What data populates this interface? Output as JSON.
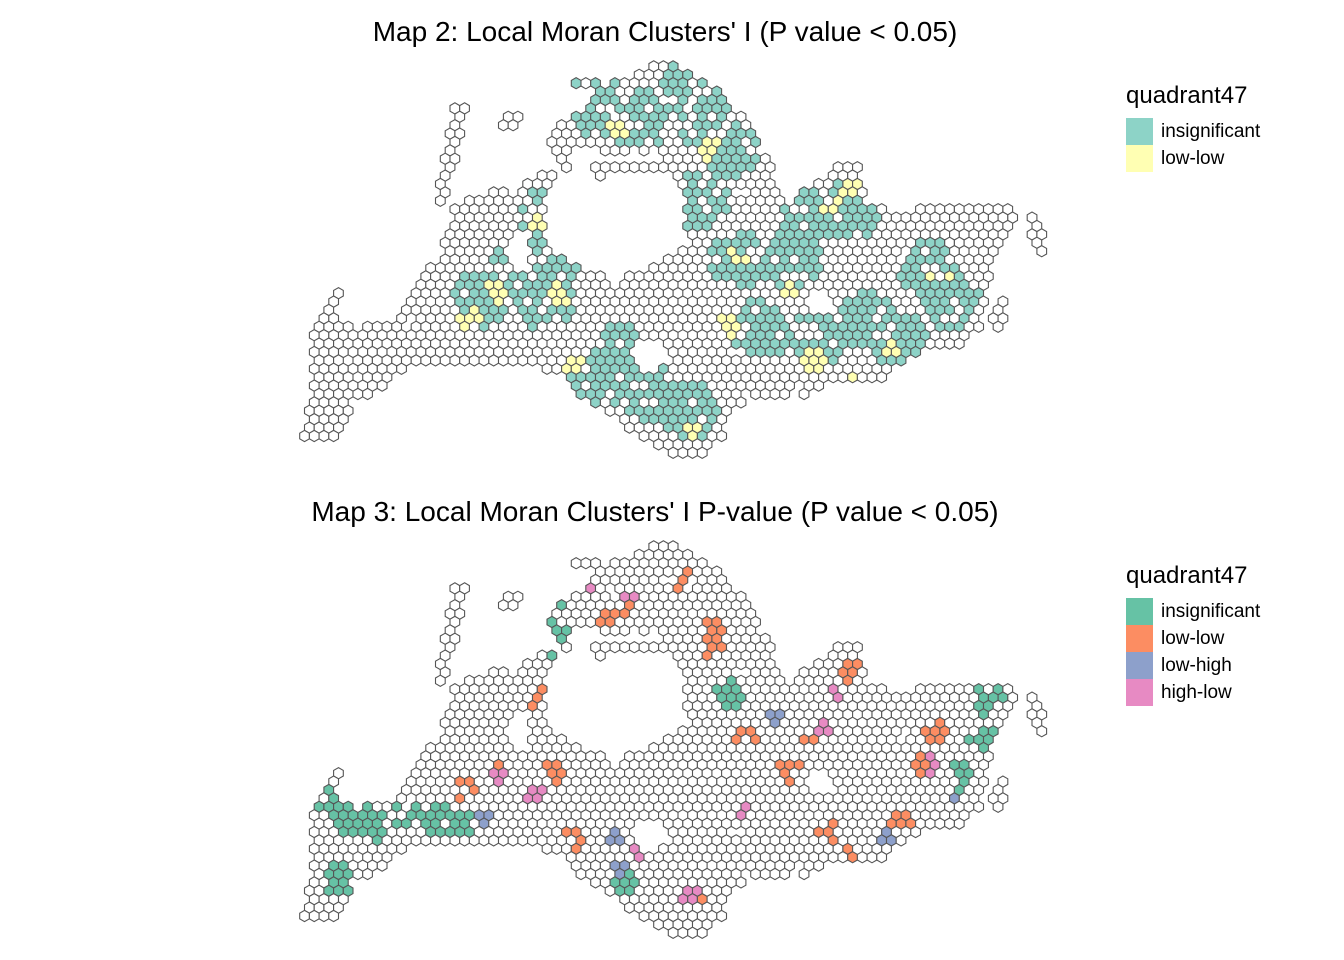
{
  "maps": [
    {
      "title": "Map 2: Local Moran Clusters' I (P value < 0.05)",
      "legend_title": "quadrant47",
      "legend": [
        {
          "label": "insignificant",
          "color": "#8dd3c7"
        },
        {
          "label": "low-low",
          "color": "#ffffb3"
        }
      ]
    },
    {
      "title": "Map 3: Local Moran Clusters' I P-value (P value < 0.05)",
      "legend_title": "quadrant47",
      "legend": [
        {
          "label": "insignificant",
          "color": "#66c2a5"
        },
        {
          "label": "low-low",
          "color": "#fc8d62"
        },
        {
          "label": "low-high",
          "color": "#8da0cb"
        },
        {
          "label": "high-low",
          "color": "#e78ac3"
        }
      ]
    }
  ],
  "hex_outline_color": "#555555"
}
